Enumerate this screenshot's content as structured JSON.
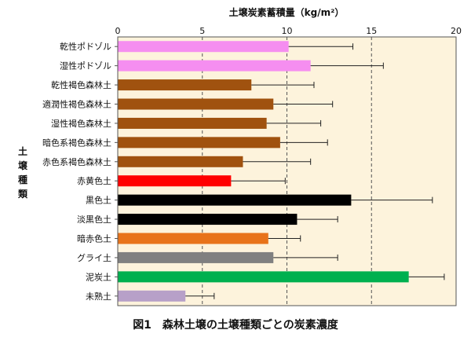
{
  "chart_data": {
    "type": "bar",
    "orientation": "horizontal",
    "title": "土壌炭素蓄積量（kg/m²）",
    "ylabel": "土壌種類",
    "caption": "図1　森林土壌の土壌種類ごとの炭素濃度",
    "xlim": [
      0,
      20
    ],
    "xticks": [
      0,
      5,
      10,
      15,
      20
    ],
    "grid": "vertical dashed at 5, 10, 15",
    "axis_position": "top",
    "categories": [
      "乾性ポドゾル",
      "湿性ポドゾル",
      "乾性褐色森林土",
      "適潤性褐色森林土",
      "湿性褐色森林土",
      "暗色系褐色森林土",
      "赤色系褐色森林土",
      "赤黄色土",
      "黒色土",
      "淡黒色土",
      "暗赤色土",
      "グライ土",
      "泥炭土",
      "未熟土"
    ],
    "values": [
      10.1,
      11.4,
      7.9,
      9.2,
      8.8,
      9.6,
      7.4,
      6.7,
      13.8,
      10.6,
      8.9,
      9.2,
      17.2,
      4.0
    ],
    "error_upper": [
      13.9,
      15.7,
      11.6,
      12.7,
      12.0,
      12.4,
      11.4,
      9.9,
      18.6,
      13.0,
      10.8,
      13.0,
      19.3,
      5.7
    ],
    "colors": [
      "#f58ef0",
      "#f58ef0",
      "#a0520f",
      "#a0520f",
      "#a0520f",
      "#a0520f",
      "#a0520f",
      "#ff0000",
      "#000000",
      "#000000",
      "#e8731a",
      "#808080",
      "#00b04f",
      "#b7a0c8"
    ]
  }
}
